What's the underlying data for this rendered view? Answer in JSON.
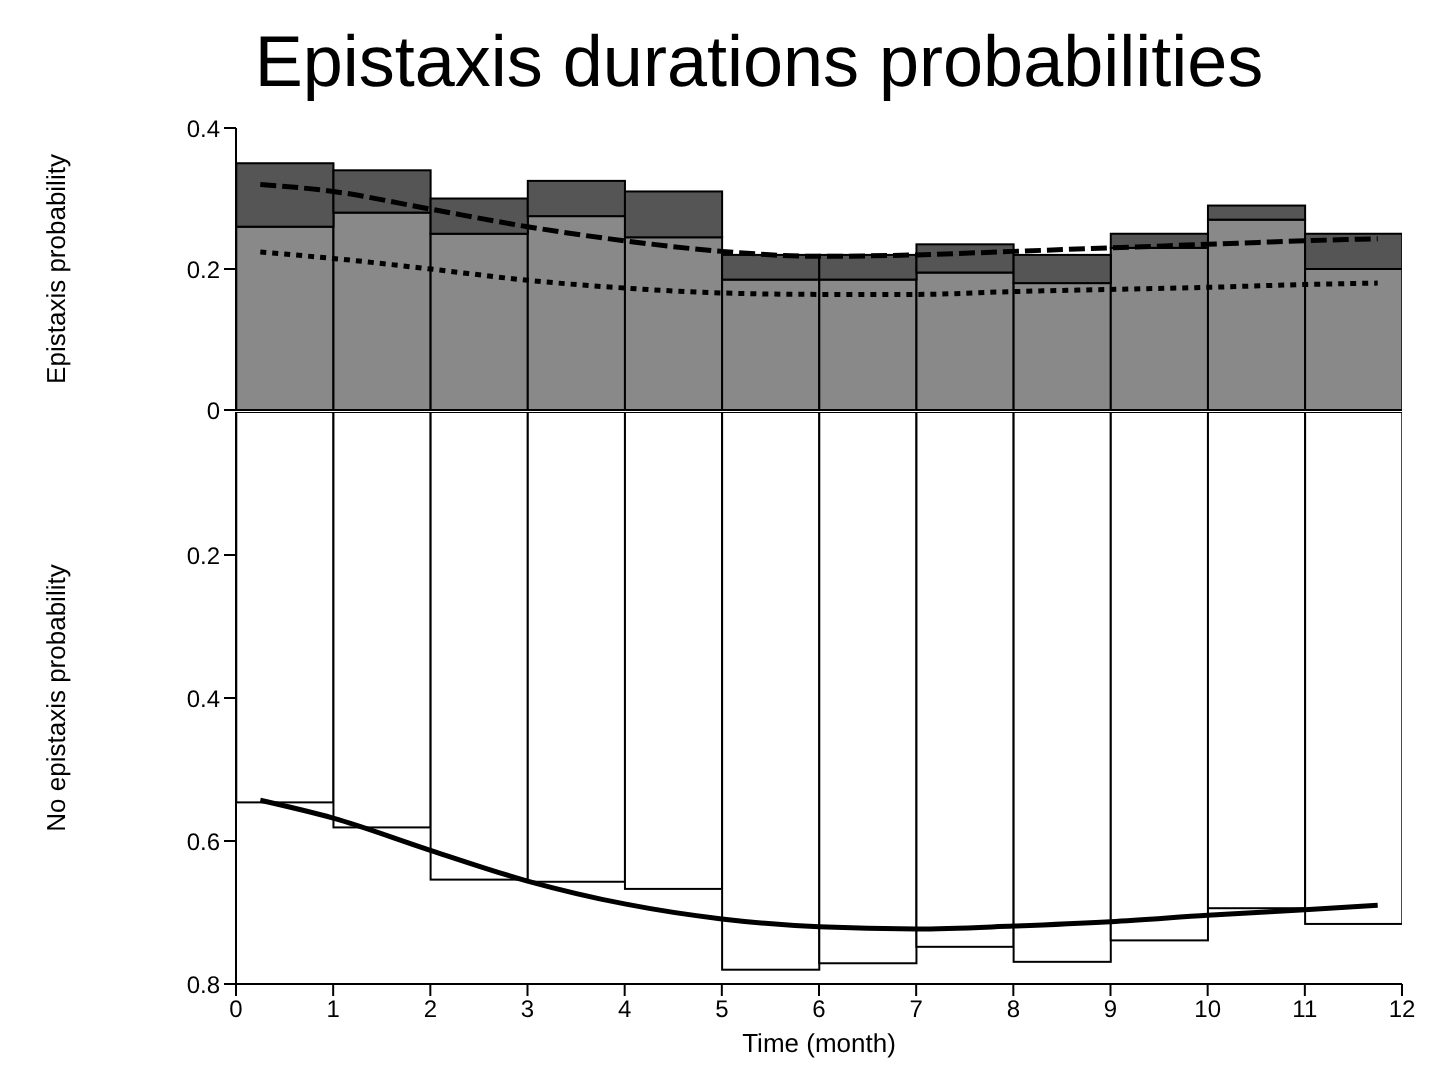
{
  "chart_data": [
    {
      "type": "bar",
      "title": "Epistaxis durations probabilities",
      "ylabel": "Epistaxis probability",
      "stacked": true,
      "x": [
        0.5,
        1.5,
        2.5,
        3.5,
        4.5,
        5.5,
        6.5,
        7.5,
        8.5,
        9.5,
        10.5,
        11.5
      ],
      "xlim": [
        0,
        12
      ],
      "xticks": [
        0,
        1,
        2,
        3,
        4,
        5,
        6,
        7,
        8,
        9,
        10,
        11,
        12
      ],
      "ylim": [
        0,
        0.4
      ],
      "yticks": [
        0,
        0.2,
        0.4
      ],
      "tick_labels": "y",
      "series": [
        {
          "color": "#898989",
          "values": [
            0.26,
            0.28,
            0.25,
            0.275,
            0.245,
            0.185,
            0.185,
            0.195,
            0.18,
            0.23,
            0.27,
            0.2
          ]
        },
        {
          "color": "#555555",
          "values": [
            0.09,
            0.06,
            0.05,
            0.05,
            0.065,
            0.035,
            0.035,
            0.04,
            0.04,
            0.02,
            0.02,
            0.05
          ]
        },
        {
          "type": "line",
          "color": "#000000",
          "line_style": "dashed",
          "x": [
            0.25,
            1,
            2,
            3,
            4,
            5,
            6,
            7,
            8,
            9,
            10,
            11,
            11.75
          ],
          "values": [
            0.32,
            0.31,
            0.285,
            0.26,
            0.24,
            0.225,
            0.218,
            0.22,
            0.225,
            0.23,
            0.235,
            0.24,
            0.243
          ]
        },
        {
          "type": "line",
          "color": "#000000",
          "line_style": "dotted",
          "x": [
            0.25,
            1,
            2,
            3,
            4,
            5,
            6,
            7,
            8,
            9,
            10,
            11,
            11.75
          ],
          "values": [
            0.224,
            0.215,
            0.2,
            0.184,
            0.173,
            0.166,
            0.164,
            0.164,
            0.168,
            0.171,
            0.174,
            0.178,
            0.18
          ]
        }
      ]
    },
    {
      "type": "bar",
      "ylabel": "No epistaxis probability",
      "xlabel": "Time (month)",
      "x": [
        0.5,
        1.5,
        2.5,
        3.5,
        4.5,
        5.5,
        6.5,
        7.5,
        8.5,
        9.5,
        10.5,
        11.5
      ],
      "xlim": [
        0,
        12
      ],
      "xticks": [
        0,
        1,
        2,
        3,
        4,
        5,
        6,
        7,
        8,
        9,
        10,
        11,
        12
      ],
      "ylim": [
        0.8,
        0
      ],
      "yticks": [
        0.2,
        0.4,
        0.6,
        0.8
      ],
      "series": [
        {
          "color": "#ffffff",
          "values": [
            0.546,
            0.581,
            0.654,
            0.657,
            0.667,
            0.78,
            0.771,
            0.748,
            0.769,
            0.739,
            0.694,
            0.716
          ]
        },
        {
          "type": "line",
          "color": "#000000",
          "line_style": "solid",
          "x": [
            0.25,
            1,
            2,
            3,
            4,
            5,
            6,
            7,
            8,
            9,
            10,
            11,
            11.75
          ],
          "values": [
            0.543,
            0.568,
            0.613,
            0.656,
            0.688,
            0.709,
            0.72,
            0.723,
            0.719,
            0.713,
            0.704,
            0.696,
            0.69
          ]
        }
      ]
    }
  ]
}
